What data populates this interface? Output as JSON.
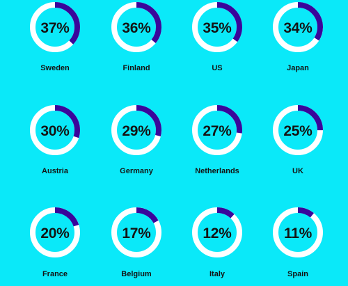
{
  "chart_data": {
    "type": "pie",
    "style": "donut-grid",
    "colors": {
      "background": "#0ae9f9",
      "track": "#ffffff",
      "fill": "#39069b",
      "text": "#141414"
    },
    "categories": [
      "Sweden",
      "Finland",
      "US",
      "Japan",
      "Austria",
      "Germany",
      "Netherlands",
      "UK",
      "France",
      "Belgium",
      "Italy",
      "Spain"
    ],
    "values": [
      37,
      36,
      35,
      34,
      30,
      29,
      27,
      25,
      20,
      17,
      12,
      11
    ],
    "value_labels": [
      "37%",
      "36%",
      "35%",
      "34%",
      "30%",
      "29%",
      "27%",
      "25%",
      "20%",
      "17%",
      "12%",
      "11%"
    ]
  }
}
